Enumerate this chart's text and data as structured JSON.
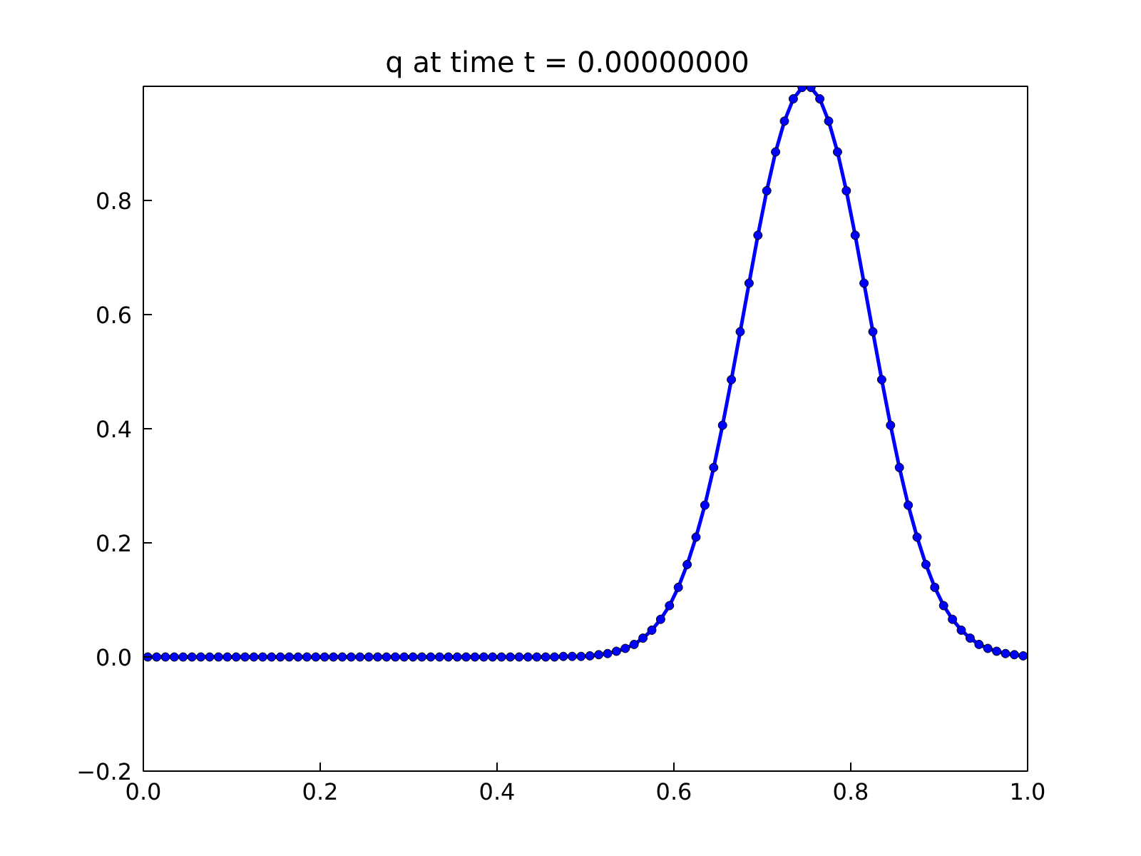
{
  "chart_data": {
    "type": "line",
    "title": "q at time t =     0.00000000",
    "x": [
      0.005,
      0.015,
      0.025,
      0.035,
      0.045,
      0.055,
      0.065,
      0.075,
      0.085,
      0.095,
      0.105,
      0.115,
      0.125,
      0.135,
      0.145,
      0.155,
      0.165,
      0.175,
      0.185,
      0.195,
      0.205,
      0.215,
      0.225,
      0.235,
      0.245,
      0.255,
      0.265,
      0.275,
      0.285,
      0.295,
      0.305,
      0.315,
      0.325,
      0.335,
      0.345,
      0.355,
      0.365,
      0.375,
      0.385,
      0.395,
      0.405,
      0.415,
      0.425,
      0.435,
      0.445,
      0.455,
      0.465,
      0.475,
      0.485,
      0.495,
      0.505,
      0.515,
      0.525,
      0.535,
      0.545,
      0.555,
      0.565,
      0.575,
      0.585,
      0.595,
      0.605,
      0.615,
      0.625,
      0.635,
      0.645,
      0.655,
      0.665,
      0.675,
      0.685,
      0.695,
      0.705,
      0.715,
      0.725,
      0.735,
      0.745,
      0.755,
      0.765,
      0.775,
      0.785,
      0.795,
      0.805,
      0.815,
      0.825,
      0.835,
      0.845,
      0.855,
      0.865,
      0.875,
      0.885,
      0.895,
      0.905,
      0.915,
      0.925,
      0.935,
      0.945,
      0.955,
      0.965,
      0.975,
      0.985,
      0.995
    ],
    "series": [
      {
        "color": "#0000ff",
        "values": [
          0,
          0,
          0,
          0,
          0,
          0,
          0,
          0,
          0,
          0,
          0,
          0,
          0,
          0,
          0,
          0,
          0,
          0,
          0,
          0,
          0,
          0,
          0,
          0,
          0,
          0,
          0,
          0,
          0,
          0,
          0,
          0,
          0,
          0,
          0,
          0,
          0,
          0,
          0,
          0,
          0,
          0,
          0,
          0,
          0,
          0,
          0,
          0.001,
          0.001,
          0.001,
          0.002,
          0.004,
          0.006,
          0.01,
          0.015,
          0.022,
          0.033,
          0.047,
          0.066,
          0.09,
          0.122,
          0.162,
          0.21,
          0.266,
          0.332,
          0.406,
          0.486,
          0.57,
          0.655,
          0.739,
          0.817,
          0.885,
          0.939,
          0.978,
          0.998,
          0.998,
          0.978,
          0.939,
          0.885,
          0.817,
          0.739,
          0.655,
          0.57,
          0.486,
          0.406,
          0.332,
          0.266,
          0.21,
          0.162,
          0.122,
          0.09,
          0.066,
          0.047,
          0.033,
          0.022,
          0.015,
          0.01,
          0.006,
          0.004,
          0.002
        ]
      }
    ],
    "xlim": [
      0,
      1
    ],
    "ylim": [
      -0.2,
      1.0
    ],
    "xticks": [
      {
        "value": 0,
        "label": "0.0"
      },
      {
        "value": 0.2,
        "label": "0.2"
      },
      {
        "value": 0.4,
        "label": "0.4"
      },
      {
        "value": 0.6,
        "label": "0.6"
      },
      {
        "value": 0.8,
        "label": "0.8"
      },
      {
        "value": 1.0,
        "label": "1.0"
      }
    ],
    "yticks": [
      {
        "value": -0.2,
        "label": "−0.2"
      },
      {
        "value": 0,
        "label": "0.0"
      },
      {
        "value": 0.2,
        "label": "0.2"
      },
      {
        "value": 0.4,
        "label": "0.4"
      },
      {
        "value": 0.6,
        "label": "0.6"
      },
      {
        "value": 0.8,
        "label": "0.8"
      }
    ],
    "grid": false,
    "marker": "circle",
    "line_style": "solid"
  }
}
